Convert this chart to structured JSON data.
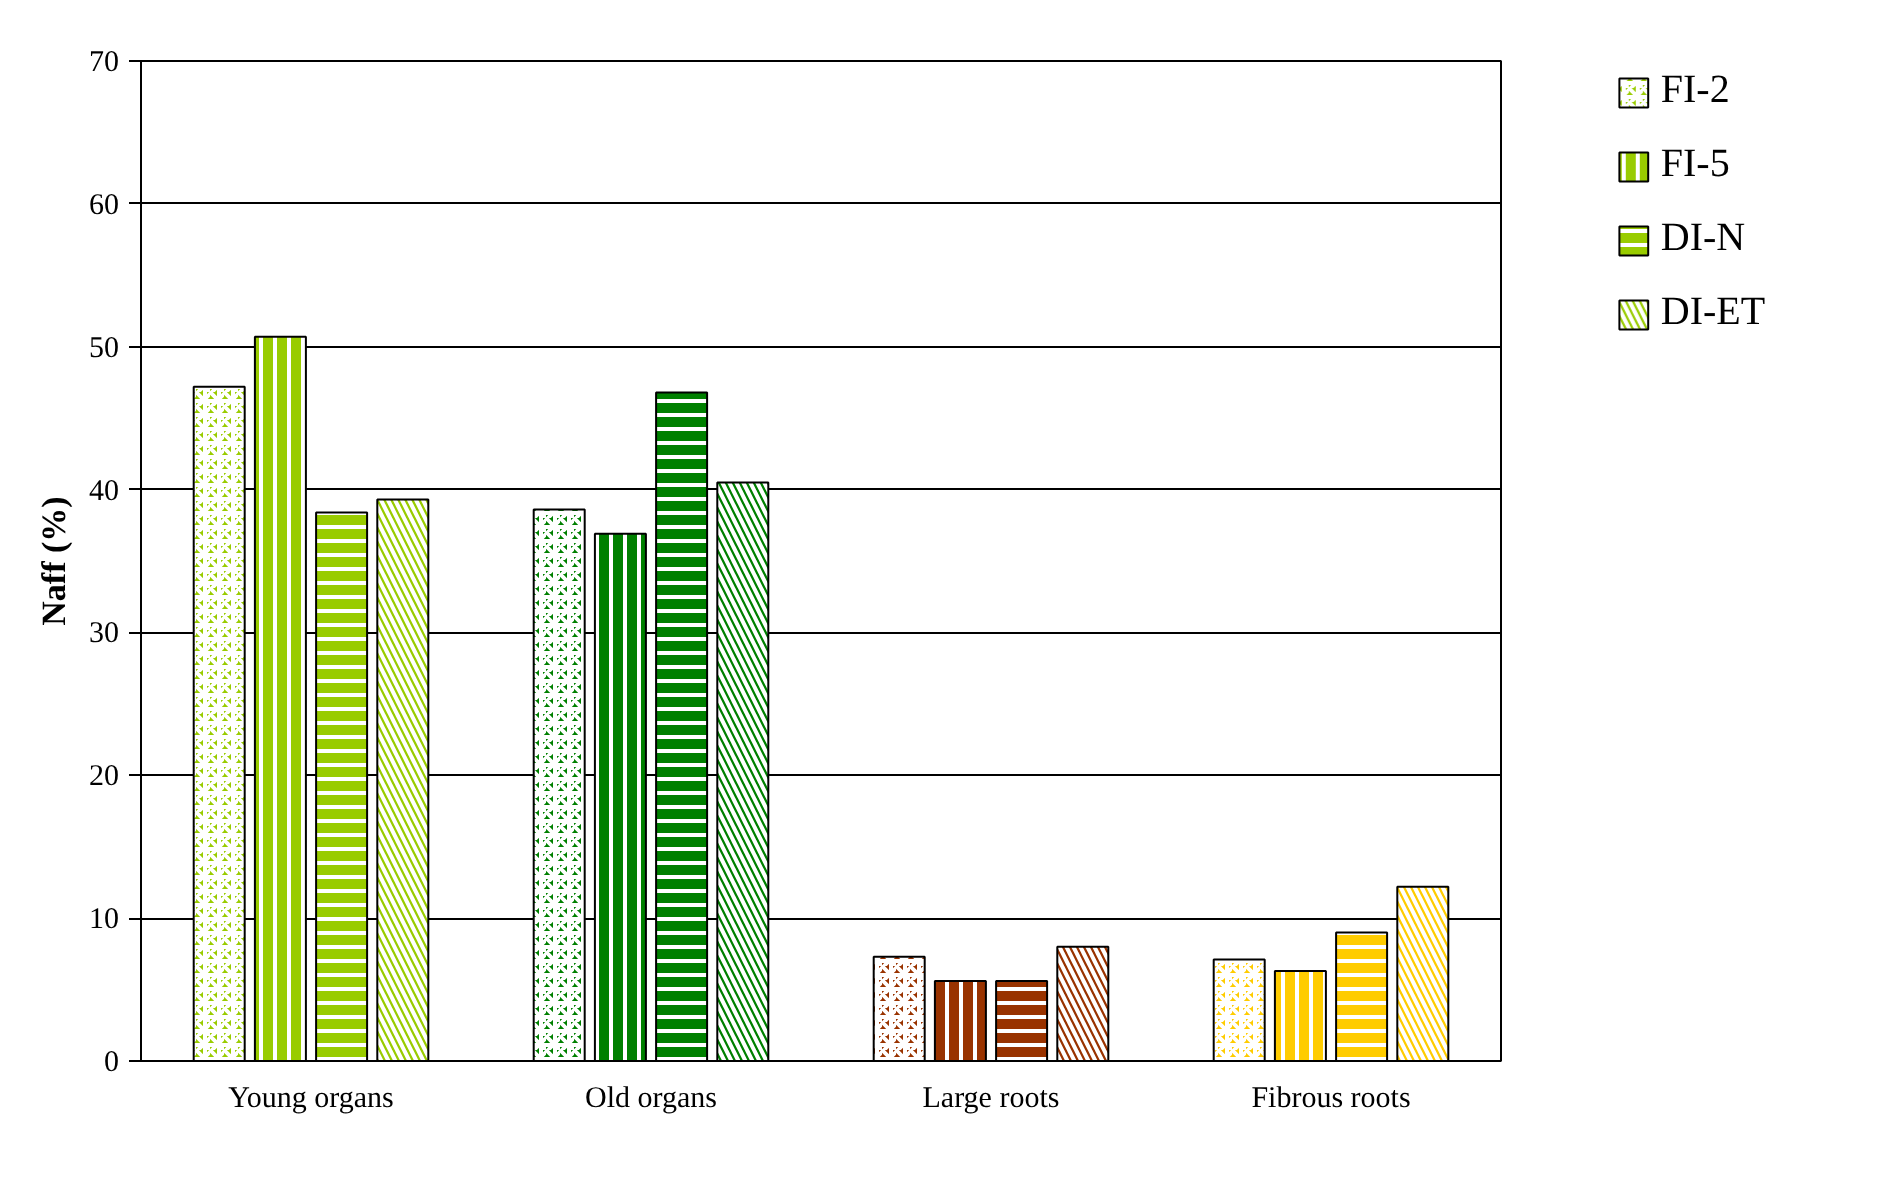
{
  "chart_data": {
    "type": "bar",
    "ylabel": "Naff (%)",
    "categories": [
      "Young organs",
      "Old organs",
      "Large roots",
      "Fibrous roots"
    ],
    "series": [
      {
        "name": "FI-2",
        "colors": [
          "#99cc00",
          "#008000",
          "#993300",
          "#ffcc00"
        ],
        "values": [
          47.2,
          38.6,
          7.3,
          7.1
        ]
      },
      {
        "name": "FI-5",
        "colors": [
          "#99cc00",
          "#008000",
          "#993300",
          "#ffcc00"
        ],
        "values": [
          50.7,
          36.9,
          5.6,
          6.3
        ]
      },
      {
        "name": "DI-N",
        "colors": [
          "#99cc00",
          "#008000",
          "#993300",
          "#ffcc00"
        ],
        "values": [
          38.4,
          46.8,
          5.6,
          9.0
        ]
      },
      {
        "name": "DI-ET",
        "colors": [
          "#99cc00",
          "#008000",
          "#993300",
          "#ffcc00"
        ],
        "values": [
          39.3,
          40.5,
          8.0,
          12.2
        ]
      }
    ],
    "ylim": [
      0,
      70
    ],
    "yticks": [
      0,
      10,
      20,
      30,
      40,
      50,
      60,
      70
    ],
    "grid": "y",
    "legend": "top right"
  }
}
